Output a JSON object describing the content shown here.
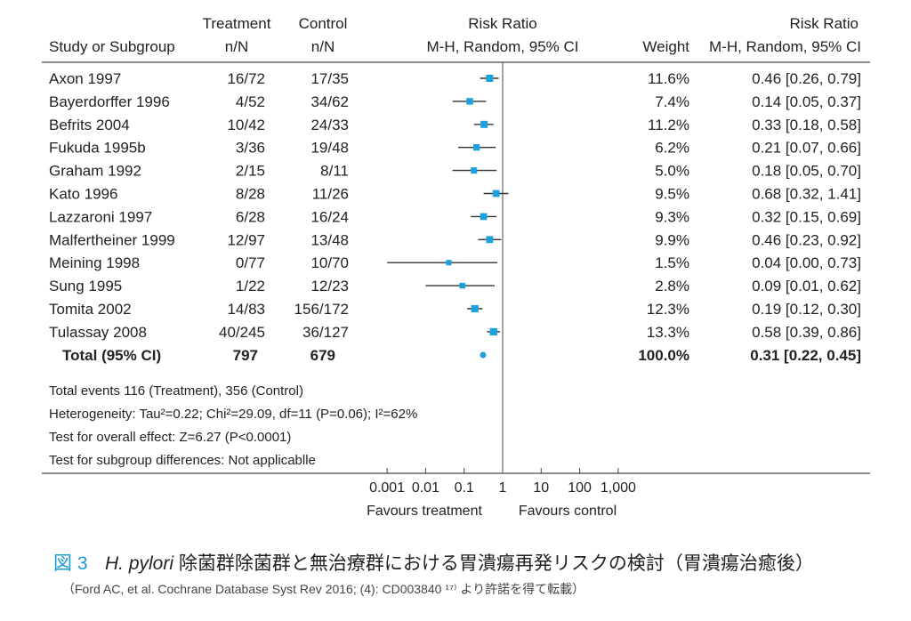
{
  "chart_data": {
    "type": "forest",
    "headers": {
      "study": "Study or Subgroup",
      "treatment_top": "Treatment",
      "treatment_sub": "n/N",
      "control_top": "Control",
      "control_sub": "n/N",
      "plot_top": "Risk Ratio",
      "plot_sub": "M-H, Random,  95% CI",
      "weight": "Weight",
      "rr_top": "Risk Ratio",
      "rr_sub": "M-H, Random,  95% CI"
    },
    "studies": [
      {
        "name": "Axon 1997",
        "treatment": "16/72",
        "control": "17/35",
        "weight": "11.6%",
        "w": 11.6,
        "rr": 0.46,
        "lo": 0.26,
        "hi": 0.79,
        "ci_text": "0.46 [0.26,  0.79]"
      },
      {
        "name": "Bayerdorffer 1996",
        "treatment": "4/52",
        "control": "34/62",
        "weight": "7.4%",
        "w": 7.4,
        "rr": 0.14,
        "lo": 0.05,
        "hi": 0.37,
        "ci_text": "0.14 [0.05,  0.37]"
      },
      {
        "name": "Befrits 2004",
        "treatment": "10/42",
        "control": "24/33",
        "weight": "11.2%",
        "w": 11.2,
        "rr": 0.33,
        "lo": 0.18,
        "hi": 0.58,
        "ci_text": "0.33 [0.18,  0.58]"
      },
      {
        "name": "Fukuda 1995b",
        "treatment": "3/36",
        "control": "19/48",
        "weight": "6.2%",
        "w": 6.2,
        "rr": 0.21,
        "lo": 0.07,
        "hi": 0.66,
        "ci_text": "0.21 [0.07,  0.66]"
      },
      {
        "name": "Graham 1992",
        "treatment": "2/15",
        "control": "8/11",
        "weight": "5.0%",
        "w": 5.0,
        "rr": 0.18,
        "lo": 0.05,
        "hi": 0.7,
        "ci_text": "0.18 [0.05,  0.70]"
      },
      {
        "name": "Kato 1996",
        "treatment": "8/28",
        "control": "11/26",
        "weight": "9.5%",
        "w": 9.5,
        "rr": 0.68,
        "lo": 0.32,
        "hi": 1.41,
        "ci_text": "0.68 [0.32,  1.41]"
      },
      {
        "name": "Lazzaroni 1997",
        "treatment": "6/28",
        "control": "16/24",
        "weight": "9.3%",
        "w": 9.3,
        "rr": 0.32,
        "lo": 0.15,
        "hi": 0.69,
        "ci_text": "0.32 [0.15,  0.69]"
      },
      {
        "name": "Malfertheiner 1999",
        "treatment": "12/97",
        "control": "13/48",
        "weight": "9.9%",
        "w": 9.9,
        "rr": 0.46,
        "lo": 0.23,
        "hi": 0.92,
        "ci_text": "0.46 [0.23,  0.92]"
      },
      {
        "name": "Meining 1998",
        "treatment": "0/77",
        "control": "10/70",
        "weight": "1.5%",
        "w": 1.5,
        "rr": 0.04,
        "lo": 0.001,
        "hi": 0.73,
        "ci_text": "0.04 [0.00,  0.73]"
      },
      {
        "name": "Sung 1995",
        "treatment": "1/22",
        "control": "12/23",
        "weight": "2.8%",
        "w": 2.8,
        "rr": 0.09,
        "lo": 0.01,
        "hi": 0.62,
        "ci_text": "0.09 [0.01,  0.62]"
      },
      {
        "name": "Tomita 2002",
        "treatment": "14/83",
        "control": "156/172",
        "weight": "12.3%",
        "w": 12.3,
        "rr": 0.19,
        "lo": 0.12,
        "hi": 0.3,
        "ci_text": "0.19 [0.12,  0.30]"
      },
      {
        "name": "Tulassay 2008",
        "treatment": "40/245",
        "control": "36/127",
        "weight": "13.3%",
        "w": 13.3,
        "rr": 0.58,
        "lo": 0.39,
        "hi": 0.86,
        "ci_text": "0.58 [0.39,  0.86]"
      }
    ],
    "total": {
      "name": "Total (95% CI)",
      "treatment": "797",
      "control": "679",
      "weight": "100.0%",
      "rr": 0.31,
      "lo": 0.22,
      "hi": 0.45,
      "ci_text": "0.31 [0.22,  0.45]"
    },
    "notes": [
      "Total events 116 (Treatment),  356 (Control)",
      "Heterogeneity: Tau²=0.22; Chi²=29.09, df=11  (P=0.06); I²=62%",
      "Test for overall effect: Z=6.27  (P<0.0001)",
      "Test for subgroup differences: Not applicablle"
    ],
    "x_ticks": [
      0.001,
      0.01,
      0.1,
      1,
      10,
      100,
      1000
    ],
    "x_tick_labels": [
      "0.001",
      "0.01",
      "0.1",
      "1",
      "10",
      "100",
      "1,000"
    ],
    "xscale": "log",
    "xlim": [
      0.001,
      1000
    ],
    "favours_left": "Favours treatment",
    "favours_right": "Favours control",
    "marker_color": "#1ba1dc"
  },
  "caption": {
    "fig_label": "図 3",
    "title_italic": "H. pylori",
    "title_rest": " 除菌群除菌群と無治療群における胃潰瘍再発リスクの検討（胃潰瘍治癒後）",
    "source": "（Ford AC, et al. Cochrane Database Syst Rev 2016; (4): CD003840 ¹⁷⁾ より許諾を得て転載）",
    "label_color": "#1a9bd7"
  }
}
